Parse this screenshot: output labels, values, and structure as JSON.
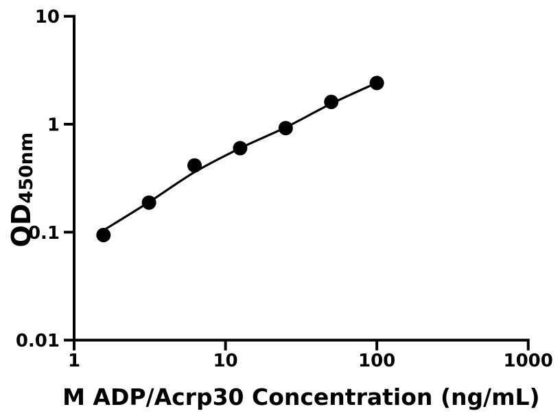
{
  "figure": {
    "background_color": "#ffffff",
    "foreground_color": "#000000"
  },
  "chart_data": {
    "type": "scatter",
    "title": "",
    "xlabel": "M ADP/Acrp30 Concentration (ng/mL)",
    "ylabel_main": "OD",
    "ylabel_sub": "450nm",
    "xscale": "log",
    "yscale": "log",
    "xlim": [
      1,
      1000
    ],
    "ylim": [
      0.01,
      10
    ],
    "grid": false,
    "legend_position": "none",
    "x_ticks": {
      "values": [
        1,
        10,
        100,
        1000
      ],
      "labels": [
        "1",
        "10",
        "100",
        "1000"
      ]
    },
    "y_ticks": {
      "values": [
        10,
        1,
        0.1,
        0.01
      ],
      "labels": [
        "10",
        "1",
        "0.1",
        "0.01"
      ]
    },
    "series": [
      {
        "name": "standard-points",
        "type": "scatter",
        "marker": "filled-circle",
        "color": "#000000",
        "x": [
          1.5625,
          3.125,
          6.25,
          12.5,
          25,
          50,
          100
        ],
        "y": [
          0.094,
          0.188,
          0.415,
          0.6,
          0.92,
          1.61,
          2.41
        ]
      },
      {
        "name": "fit-curve",
        "type": "line",
        "color": "#000000",
        "x": [
          1.5625,
          3.125,
          6.25,
          12.5,
          25,
          50,
          100
        ],
        "y": [
          0.104,
          0.19,
          0.36,
          0.6,
          0.935,
          1.55,
          2.42
        ]
      }
    ]
  }
}
